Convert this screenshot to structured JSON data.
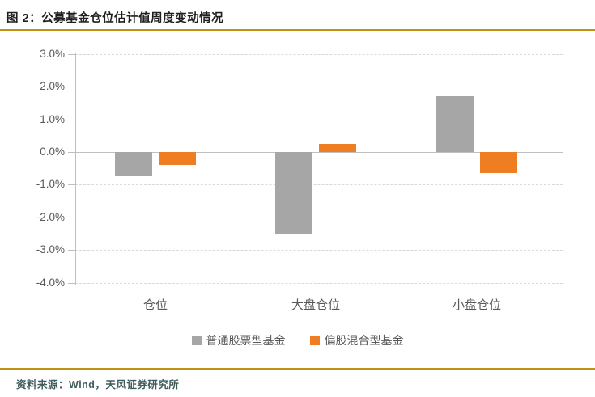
{
  "header": {
    "title": "图 2：公募基金仓位估计值周度变动情况"
  },
  "footer": {
    "source": "资料来源：Wind，天风证券研究所"
  },
  "colors": {
    "accent_rule": "#BF9114",
    "bar_gray": "#A6A6A6",
    "bar_orange": "#EF7D22",
    "gridline": "#D9D9D9",
    "zero_line": "#C0C0C0",
    "axis_line": "#BFBFBF",
    "axis_text": "#595959",
    "title_text": "#1F1F1F",
    "source_text": "#3F5C5C"
  },
  "chart_data": {
    "type": "bar",
    "title": "图 2：公募基金仓位估计值周度变动情况",
    "categories": [
      "仓位",
      "大盘仓位",
      "小盘仓位"
    ],
    "series": [
      {
        "name": "普通股票型基金",
        "color": "#A6A6A6",
        "values": [
          -0.75,
          -2.5,
          1.7
        ]
      },
      {
        "name": "偏股混合型基金",
        "color": "#EF7D22",
        "values": [
          -0.4,
          0.25,
          -0.65
        ]
      }
    ],
    "xlabel": "",
    "ylabel": "",
    "ylim": [
      -4.0,
      3.0
    ],
    "ytick_step": 1.0,
    "ytick_labels": [
      "3.0%",
      "2.0%",
      "1.0%",
      "0.0%",
      "-1.0%",
      "-2.0%",
      "-3.0%",
      "-4.0%"
    ],
    "grid": "horizontal-dashed",
    "legend_position": "bottom"
  }
}
